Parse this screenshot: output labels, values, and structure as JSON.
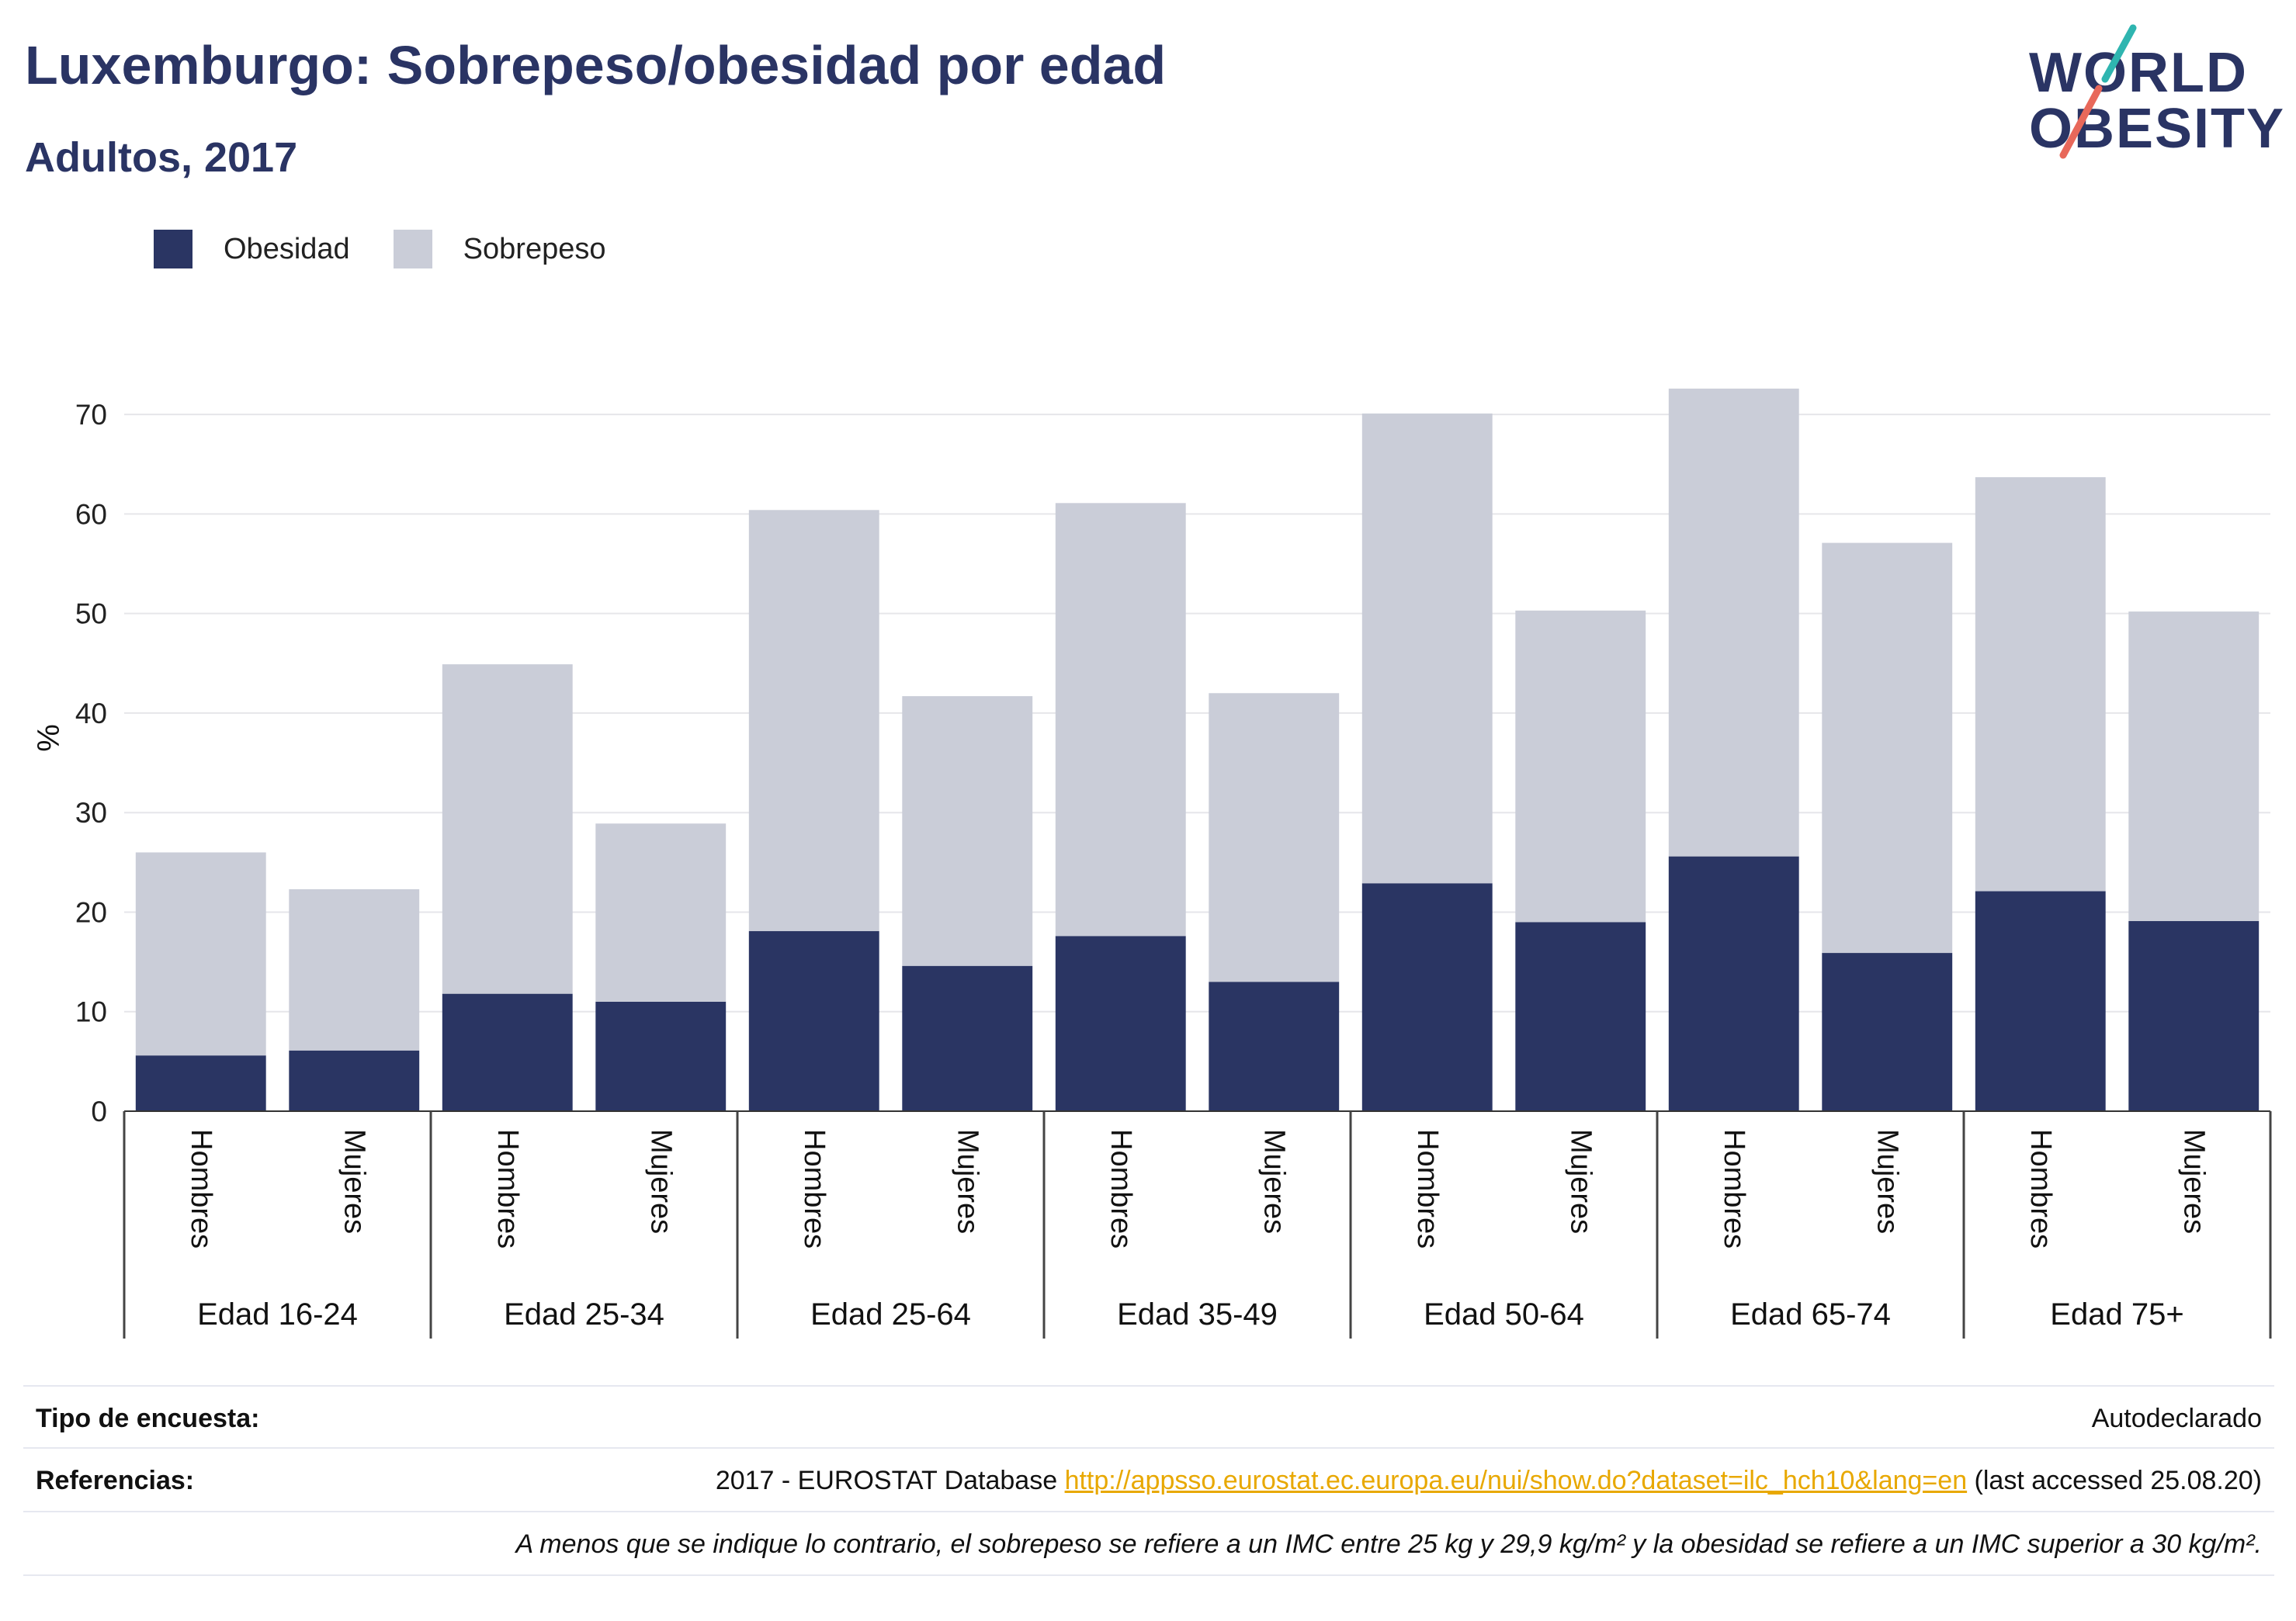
{
  "header": {
    "title": "Luxemburgo: Sobrepeso/obesidad por edad",
    "subtitle": "Adultos, 2017"
  },
  "logo": {
    "line1": "WORLD",
    "line2": "OBESITY"
  },
  "colors": {
    "obesidad": "#2a3563",
    "sobrepeso": "#cacdd8",
    "title": "#2a3464",
    "link": "#e8a800",
    "logo_teal": "#2fb5b0",
    "logo_red": "#e8685a"
  },
  "legend": {
    "items": [
      {
        "label": "Obesidad"
      },
      {
        "label": "Sobrepeso"
      }
    ]
  },
  "chart_data": {
    "type": "bar",
    "stacked": true,
    "ylabel": "%",
    "ylim": [
      0,
      75
    ],
    "yticks": [
      0,
      10,
      20,
      30,
      40,
      50,
      60,
      70
    ],
    "grid": true,
    "legend_position": "top-left",
    "groups": [
      "Edad 16-24",
      "Edad 25-34",
      "Edad 25-64",
      "Edad 35-49",
      "Edad 50-64",
      "Edad 65-74",
      "Edad 75+"
    ],
    "subcategories": [
      "Hombres",
      "Mujeres"
    ],
    "categories": [
      "Hombres",
      "Mujeres",
      "Hombres",
      "Mujeres",
      "Hombres",
      "Mujeres",
      "Hombres",
      "Mujeres",
      "Hombres",
      "Mujeres",
      "Hombres",
      "Mujeres",
      "Hombres",
      "Mujeres"
    ],
    "series": [
      {
        "name": "Obesidad",
        "values": [
          5.6,
          6.1,
          11.8,
          11.0,
          18.1,
          14.6,
          17.6,
          13.0,
          22.9,
          19.0,
          25.6,
          15.9,
          22.1,
          19.1
        ]
      },
      {
        "name": "Sobrepeso",
        "values": [
          20.4,
          16.2,
          33.1,
          17.9,
          42.3,
          27.1,
          43.5,
          29.0,
          47.2,
          31.3,
          47.0,
          41.2,
          41.6,
          31.1
        ]
      }
    ]
  },
  "table": {
    "rows": [
      {
        "key": "Tipo de encuesta:",
        "value": "Autodeclarado"
      },
      {
        "key": "Referencias:",
        "value_prefix": "2017 - EUROSTAT Database ",
        "link": "http://appsso.eurostat.ec.europa.eu/nui/show.do?dataset=ilc_hch10&lang=en",
        "value_suffix": " (last accessed 25.08.20)"
      },
      {
        "key": "",
        "note": "A menos que se indique lo contrario, el sobrepeso se refiere a un IMC entre 25 kg y 29,9 kg/m² y la obesidad se refiere a un IMC superior a 30 kg/m²."
      }
    ]
  }
}
